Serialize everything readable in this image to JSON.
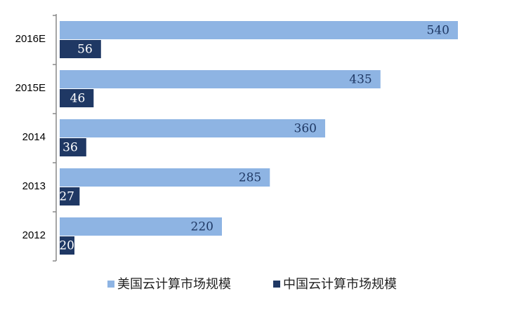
{
  "chart_data": {
    "type": "bar",
    "orientation": "horizontal",
    "categories": [
      "2016E",
      "2015E",
      "2014",
      "2013",
      "2012"
    ],
    "series": [
      {
        "name": "美国云计算市场规模",
        "color": "#8eb4e3",
        "values": [
          540,
          435,
          360,
          285,
          220
        ]
      },
      {
        "name": "中国云计算市场规模",
        "color": "#1f3864",
        "values": [
          56,
          46,
          36,
          27,
          20
        ]
      }
    ],
    "legend": "bottom"
  }
}
